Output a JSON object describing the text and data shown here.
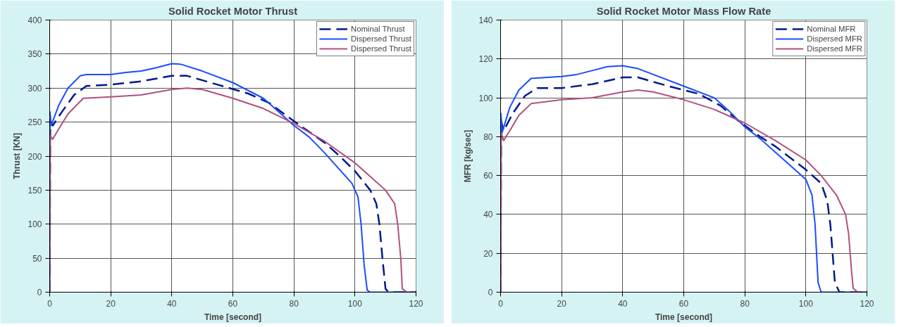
{
  "chart_data": [
    {
      "type": "line",
      "title": "Solid Rocket Motor Thrust",
      "xlabel": "Time [second]",
      "ylabel": "Thrust [KN]",
      "xlim": [
        0,
        120
      ],
      "ylim": [
        0,
        400
      ],
      "xticks": [
        0,
        20,
        40,
        60,
        80,
        100,
        120
      ],
      "yticks": [
        0,
        50,
        100,
        150,
        200,
        250,
        300,
        350,
        400
      ],
      "grid": true,
      "legend": "top right",
      "marker": "none",
      "series": [
        {
          "name": "Nominal Thrust",
          "color": "#001a8c",
          "line_style": "dashed",
          "x": [
            0,
            0.2,
            1,
            4,
            8,
            12,
            20,
            30,
            40,
            45,
            55,
            65,
            72,
            78,
            82,
            90,
            95,
            100,
            105,
            107,
            108,
            109,
            110,
            111,
            120
          ],
          "values": [
            0,
            250,
            245,
            265,
            290,
            303,
            305,
            310,
            318,
            318,
            305,
            292,
            278,
            258,
            245,
            220,
            200,
            178,
            150,
            130,
            100,
            50,
            5,
            0,
            0
          ]
        },
        {
          "name": "Dispersed Thrust",
          "color": "#1a4cff",
          "line_style": "solid",
          "x": [
            0,
            0.1,
            0.5,
            3,
            6,
            10,
            12,
            20,
            25,
            30,
            35,
            40,
            43,
            50,
            60,
            70,
            75,
            80,
            85,
            90,
            95,
            99,
            101,
            102,
            103,
            104,
            105,
            120
          ],
          "values": [
            0,
            265,
            245,
            275,
            300,
            318,
            320,
            320,
            323,
            325,
            330,
            336,
            335,
            325,
            308,
            285,
            265,
            245,
            228,
            205,
            180,
            160,
            140,
            100,
            40,
            3,
            0,
            0
          ]
        },
        {
          "name": "Dispersed Thrust",
          "color": "#b0507f",
          "line_style": "solid",
          "x": [
            0,
            0.2,
            1,
            3,
            6,
            11,
            20,
            30,
            40,
            45,
            50,
            60,
            70,
            80,
            90,
            100,
            105,
            110,
            113,
            114,
            115,
            115.5,
            117,
            120
          ],
          "values": [
            0,
            230,
            225,
            240,
            262,
            285,
            287,
            290,
            298,
            300,
            298,
            285,
            270,
            248,
            222,
            190,
            170,
            150,
            130,
            100,
            50,
            5,
            0,
            0
          ]
        }
      ]
    },
    {
      "type": "line",
      "title": "Solid Rocket Motor Mass Flow Rate",
      "xlabel": "Time [second]",
      "ylabel": "MFR [kg/sec]",
      "xlim": [
        0,
        120
      ],
      "ylim": [
        0,
        140
      ],
      "xticks": [
        0,
        20,
        40,
        60,
        80,
        100,
        120
      ],
      "yticks": [
        0,
        20,
        40,
        60,
        80,
        100,
        120,
        140
      ],
      "grid": true,
      "legend": "top right",
      "marker": "none",
      "series": [
        {
          "name": "Nominal MFR",
          "color": "#001a8c",
          "line_style": "dashed",
          "x": [
            0,
            0.2,
            1,
            4,
            8,
            12,
            20,
            30,
            40,
            45,
            55,
            65,
            72,
            78,
            85,
            90,
            95,
            100,
            105,
            107,
            108,
            109,
            109.5,
            111,
            120
          ],
          "values": [
            0,
            88,
            83,
            92,
            101,
            105,
            105,
            107,
            110.5,
            110.5,
            106,
            102,
            96,
            88,
            80,
            75,
            69,
            63,
            56,
            47,
            35,
            15,
            5,
            0,
            0
          ]
        },
        {
          "name": "Dispersed MFR",
          "color": "#1a4cff",
          "line_style": "solid",
          "x": [
            0,
            0.1,
            0.5,
            3,
            6,
            10,
            20,
            25,
            30,
            35,
            40,
            45,
            50,
            60,
            70,
            75,
            80,
            85,
            90,
            95,
            100,
            102,
            103,
            104,
            105,
            120
          ],
          "values": [
            0,
            92,
            82,
            95,
            104,
            110,
            111,
            112,
            114,
            116,
            116.5,
            115,
            112,
            106,
            100,
            93,
            85,
            79,
            72,
            65,
            58,
            50,
            35,
            5,
            0,
            0
          ]
        },
        {
          "name": "Dispersed MFR",
          "color": "#b0507f",
          "line_style": "solid",
          "x": [
            0,
            0.2,
            1,
            3,
            6,
            10,
            20,
            30,
            40,
            45,
            50,
            60,
            70,
            80,
            90,
            100,
            105,
            110,
            113,
            114,
            115,
            115.5,
            117,
            120
          ],
          "values": [
            0,
            82,
            78,
            83,
            91,
            97,
            99,
            100,
            103,
            104,
            103,
            99,
            94,
            87,
            78,
            68,
            60,
            50,
            40,
            30,
            10,
            2,
            0,
            0
          ]
        }
      ]
    }
  ]
}
